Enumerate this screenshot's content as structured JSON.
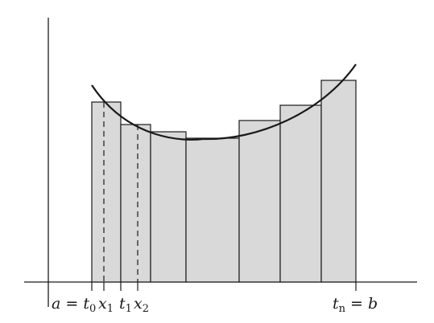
{
  "diagram": {
    "type": "riemann-sum-illustration",
    "shape_fill": "#d9d9d9",
    "stroke_color": "#1a1a1a",
    "curve": "U-shaped convex curve over the partition",
    "rectangle_count": 8,
    "labels": {
      "a_eq": "a = ",
      "t": "t",
      "x": "x",
      "sub0": "0",
      "sub1": "1",
      "sub2": "2",
      "subn": "n",
      "eq_b": " = b"
    }
  }
}
